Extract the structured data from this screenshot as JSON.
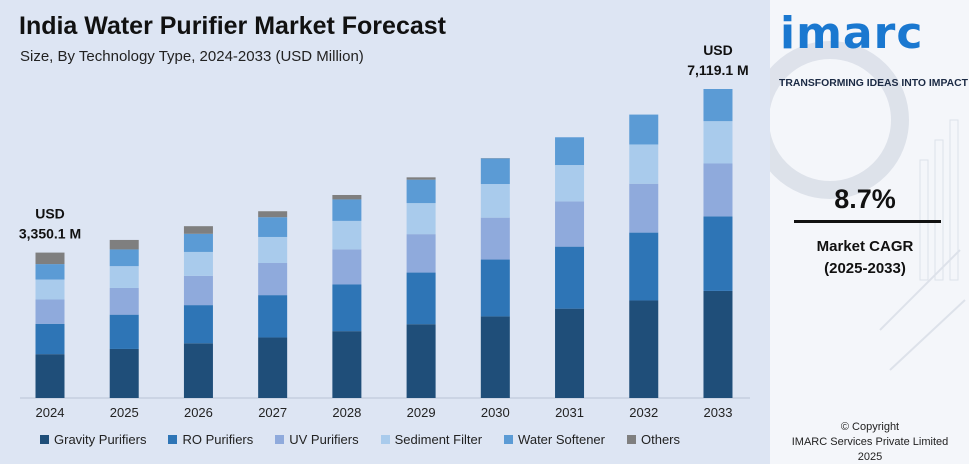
{
  "title": "India Water Purifier Market Forecast",
  "subtitle": "Size, By Technology Type, 2024-2033 (USD Million)",
  "logo": {
    "text": "imarc",
    "tagline": "TRANSFORMING IDEAS INTO IMPACT"
  },
  "cagr": {
    "value": "8.7%",
    "label_line1": "Market CAGR",
    "label_line2": "(2025-2033)"
  },
  "copyright": {
    "line1": "© Copyright",
    "line2": "IMARC Services Private Limited 2025"
  },
  "colors": {
    "gravity": "#1f4e79",
    "ro": "#2e75b6",
    "uv": "#8faadc",
    "sediment": "#a9cbec",
    "softener": "#5b9bd5",
    "others": "#7f7f7f"
  },
  "chart_data": {
    "type": "bar",
    "stacked": true,
    "title": "India Water Purifier Market Forecast",
    "subtitle": "Size, By Technology Type, 2024-2033 (USD Million)",
    "categories": [
      "2024",
      "2025",
      "2026",
      "2027",
      "2028",
      "2029",
      "2030",
      "2031",
      "2032",
      "2033"
    ],
    "totals": [
      3350.1,
      3641.6,
      3958.4,
      4302.8,
      4677.1,
      5084.0,
      5526.3,
      6007.1,
      6529.7,
      7119.1
    ],
    "series": [
      {
        "name": "Gravity Purifiers",
        "color_key": "gravity",
        "values": [
          1010,
          1130,
          1260,
          1395,
          1540,
          1700,
          1880,
          2075,
          2285,
          2530
        ]
      },
      {
        "name": "RO Purifiers",
        "color_key": "ro",
        "values": [
          700,
          790,
          880,
          975,
          1075,
          1190,
          1310,
          1440,
          1590,
          1760
        ]
      },
      {
        "name": "UV Purifiers",
        "color_key": "uv",
        "values": [
          560,
          615,
          675,
          740,
          810,
          885,
          965,
          1050,
          1145,
          1250
        ]
      },
      {
        "name": "Sediment Filter",
        "color_key": "sediment",
        "values": [
          460,
          503,
          550,
          600,
          655,
          715,
          775,
          845,
          920,
          1000
        ]
      },
      {
        "name": "Water Softener",
        "color_key": "softener",
        "values": [
          355,
          385,
          418,
          455,
          495,
          540,
          590,
          645,
          700,
          760
        ]
      },
      {
        "name": "Others",
        "color_key": "others",
        "values": [
          265.1,
          218.6,
          175.4,
          137.8,
          102.1,
          54.0,
          6.3,
          -47.9,
          -110.3,
          -180.9
        ]
      }
    ],
    "annotations": [
      {
        "category": "2024",
        "line1": "USD",
        "line2": "3,350.1 M"
      },
      {
        "category": "2033",
        "line1": "USD",
        "line2": "7,119.1 M"
      }
    ],
    "ylim": [
      0,
      7119.1
    ],
    "grid": false,
    "legend": "bottom"
  }
}
